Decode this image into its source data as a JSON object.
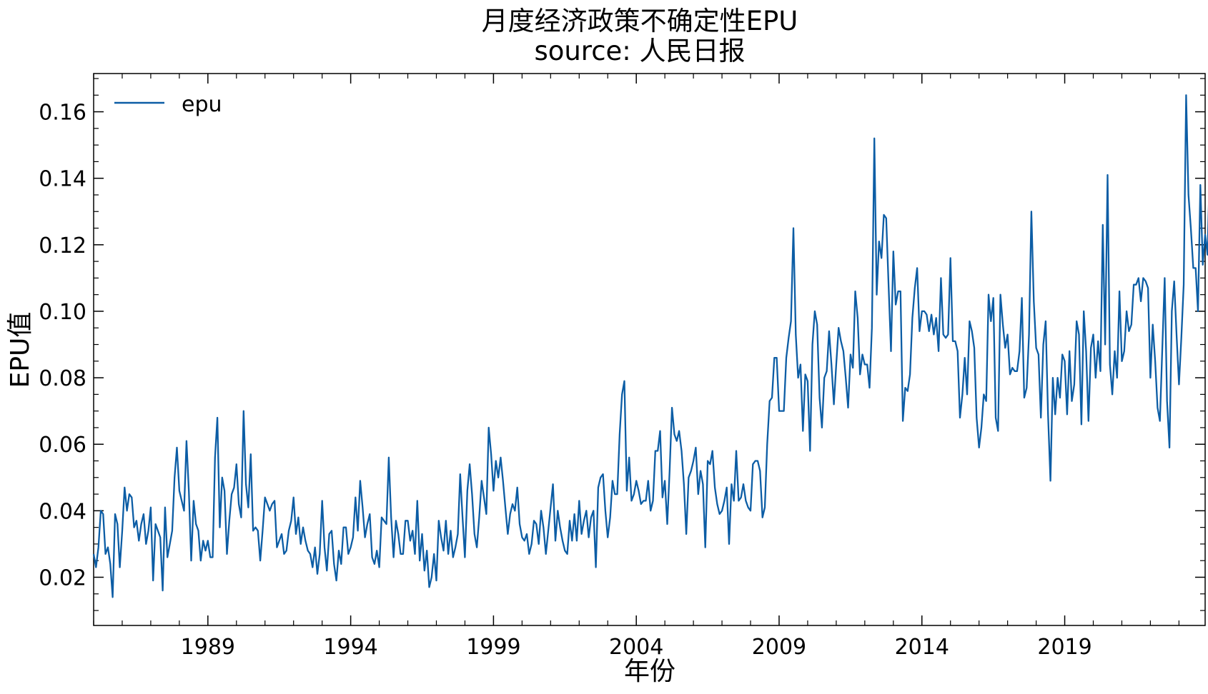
{
  "chart_data": {
    "type": "line",
    "title": "月度经济政策不确定性EPU",
    "subtitle": "source: 人民日报",
    "xlabel": "年份",
    "ylabel": "EPU值",
    "legend": {
      "position": "top-left",
      "entries": [
        "epu"
      ]
    },
    "series_color": "#0C5DA5",
    "grid": false,
    "xlim": [
      "1985-01",
      "2023-12"
    ],
    "ylim": [
      0.0055,
      0.1715
    ],
    "x_ticks": [
      "1989",
      "1994",
      "1999",
      "2004",
      "2009",
      "2014",
      "2019"
    ],
    "y_ticks": [
      "0.02",
      "0.04",
      "0.06",
      "0.08",
      "0.10",
      "0.12",
      "0.14",
      "0.16"
    ],
    "series": [
      {
        "name": "epu",
        "start": "1985-01",
        "frequency": "monthly",
        "values": [
          0.027,
          0.023,
          0.029,
          0.04,
          0.039,
          0.027,
          0.029,
          0.024,
          0.014,
          0.039,
          0.036,
          0.023,
          0.034,
          0.047,
          0.04,
          0.045,
          0.044,
          0.035,
          0.037,
          0.031,
          0.036,
          0.039,
          0.03,
          0.034,
          0.041,
          0.019,
          0.036,
          0.034,
          0.032,
          0.016,
          0.041,
          0.026,
          0.03,
          0.034,
          0.05,
          0.059,
          0.046,
          0.043,
          0.04,
          0.061,
          0.046,
          0.025,
          0.043,
          0.036,
          0.034,
          0.025,
          0.031,
          0.028,
          0.031,
          0.026,
          0.026,
          0.056,
          0.068,
          0.035,
          0.05,
          0.046,
          0.027,
          0.037,
          0.045,
          0.047,
          0.054,
          0.042,
          0.038,
          0.07,
          0.048,
          0.041,
          0.057,
          0.034,
          0.035,
          0.034,
          0.025,
          0.034,
          0.044,
          0.042,
          0.04,
          0.042,
          0.043,
          0.029,
          0.031,
          0.033,
          0.027,
          0.028,
          0.034,
          0.037,
          0.044,
          0.033,
          0.038,
          0.03,
          0.035,
          0.031,
          0.028,
          0.027,
          0.023,
          0.029,
          0.021,
          0.027,
          0.043,
          0.029,
          0.022,
          0.033,
          0.034,
          0.024,
          0.019,
          0.028,
          0.024,
          0.035,
          0.035,
          0.027,
          0.029,
          0.032,
          0.044,
          0.034,
          0.049,
          0.041,
          0.032,
          0.036,
          0.039,
          0.026,
          0.024,
          0.028,
          0.023,
          0.038,
          0.037,
          0.036,
          0.056,
          0.038,
          0.026,
          0.037,
          0.033,
          0.027,
          0.027,
          0.037,
          0.037,
          0.031,
          0.034,
          0.027,
          0.043,
          0.025,
          0.033,
          0.022,
          0.028,
          0.017,
          0.02,
          0.027,
          0.019,
          0.037,
          0.032,
          0.028,
          0.037,
          0.027,
          0.034,
          0.026,
          0.029,
          0.033,
          0.051,
          0.038,
          0.026,
          0.046,
          0.054,
          0.045,
          0.033,
          0.029,
          0.038,
          0.049,
          0.044,
          0.039,
          0.065,
          0.057,
          0.046,
          0.055,
          0.05,
          0.056,
          0.049,
          0.041,
          0.033,
          0.039,
          0.042,
          0.04,
          0.047,
          0.036,
          0.032,
          0.031,
          0.033,
          0.027,
          0.03,
          0.037,
          0.036,
          0.03,
          0.04,
          0.035,
          0.027,
          0.034,
          0.041,
          0.048,
          0.031,
          0.04,
          0.035,
          0.031,
          0.028,
          0.027,
          0.037,
          0.031,
          0.039,
          0.031,
          0.043,
          0.033,
          0.037,
          0.04,
          0.032,
          0.038,
          0.04,
          0.023,
          0.047,
          0.05,
          0.051,
          0.04,
          0.032,
          0.038,
          0.049,
          0.045,
          0.045,
          0.063,
          0.075,
          0.079,
          0.046,
          0.056,
          0.043,
          0.045,
          0.049,
          0.046,
          0.042,
          0.043,
          0.043,
          0.049,
          0.04,
          0.043,
          0.058,
          0.058,
          0.064,
          0.044,
          0.049,
          0.036,
          0.052,
          0.071,
          0.063,
          0.061,
          0.064,
          0.058,
          0.048,
          0.033,
          0.05,
          0.052,
          0.055,
          0.059,
          0.045,
          0.052,
          0.048,
          0.029,
          0.055,
          0.054,
          0.058,
          0.047,
          0.042,
          0.039,
          0.04,
          0.043,
          0.047,
          0.03,
          0.048,
          0.043,
          0.058,
          0.043,
          0.044,
          0.048,
          0.043,
          0.041,
          0.04,
          0.054,
          0.055,
          0.055,
          0.052,
          0.038,
          0.041,
          0.06,
          0.073,
          0.074,
          0.086,
          0.086,
          0.07,
          0.07,
          0.07,
          0.086,
          0.092,
          0.097,
          0.125,
          0.093,
          0.08,
          0.084,
          0.064,
          0.081,
          0.079,
          0.058,
          0.09,
          0.1,
          0.096,
          0.074,
          0.065,
          0.08,
          0.082,
          0.094,
          0.084,
          0.072,
          0.084,
          0.095,
          0.091,
          0.088,
          0.08,
          0.071,
          0.087,
          0.083,
          0.106,
          0.098,
          0.081,
          0.087,
          0.084,
          0.084,
          0.077,
          0.095,
          0.152,
          0.105,
          0.121,
          0.116,
          0.129,
          0.128,
          0.108,
          0.088,
          0.118,
          0.102,
          0.106,
          0.106,
          0.067,
          0.077,
          0.076,
          0.081,
          0.098,
          0.107,
          0.113,
          0.094,
          0.1,
          0.1,
          0.099,
          0.094,
          0.099,
          0.093,
          0.098,
          0.088,
          0.11,
          0.093,
          0.092,
          0.093,
          0.116,
          0.091,
          0.091,
          0.088,
          0.068,
          0.075,
          0.086,
          0.075,
          0.097,
          0.094,
          0.089,
          0.068,
          0.059,
          0.065,
          0.075,
          0.073,
          0.105,
          0.097,
          0.104,
          0.068,
          0.064,
          0.105,
          0.096,
          0.089,
          0.093,
          0.081,
          0.083,
          0.082,
          0.082,
          0.088,
          0.104,
          0.074,
          0.077,
          0.093,
          0.13,
          0.103,
          0.089,
          0.087,
          0.068,
          0.09,
          0.097,
          0.069,
          0.049,
          0.08,
          0.069,
          0.08,
          0.074,
          0.087,
          0.085,
          0.069,
          0.088,
          0.073,
          0.078,
          0.097,
          0.093,
          0.066,
          0.1,
          0.088,
          0.067,
          0.089,
          0.093,
          0.08,
          0.091,
          0.082,
          0.126,
          0.09,
          0.141,
          0.084,
          0.075,
          0.088,
          0.08,
          0.106,
          0.085,
          0.088,
          0.1,
          0.094,
          0.096,
          0.108,
          0.108,
          0.11,
          0.103,
          0.11,
          0.109,
          0.107,
          0.08,
          0.096,
          0.085,
          0.071,
          0.067,
          0.089,
          0.11,
          0.073,
          0.059,
          0.1,
          0.109,
          0.093,
          0.078,
          0.092,
          0.108,
          0.165,
          0.135,
          0.125,
          0.113,
          0.113,
          0.1,
          0.138,
          0.114,
          0.123,
          0.117,
          0.145,
          0.112,
          0.103,
          0.089,
          0.083,
          0.098,
          0.083,
          0.082,
          0.073,
          0.08
        ]
      }
    ]
  }
}
